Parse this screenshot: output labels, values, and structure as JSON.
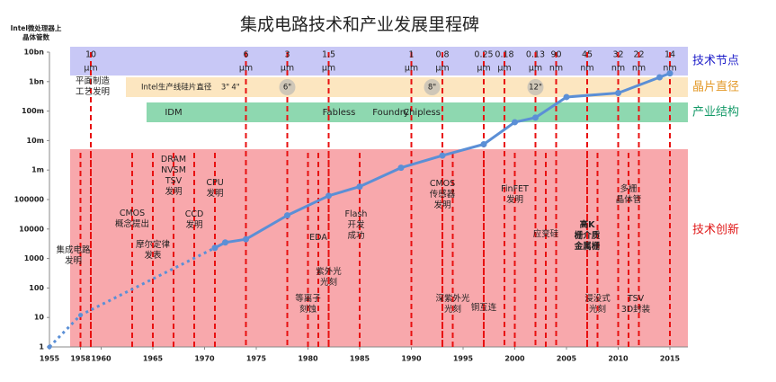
{
  "chart_data": {
    "type": "line",
    "title": "集成电路技术和产业发展里程碑",
    "y_label": [
      "Intel微处理器上",
      "晶体管数"
    ],
    "ylog": true,
    "xlim": [
      1955,
      2015
    ],
    "xticks": [
      1955,
      1958,
      1960,
      1965,
      1970,
      1975,
      1980,
      1985,
      1990,
      1995,
      2000,
      2005,
      2010,
      2015
    ],
    "ylim": [
      1,
      10000000000
    ],
    "yticks": [
      1,
      10,
      100,
      1000,
      10000,
      100000,
      {
        "value": 1000000,
        "label": "1m"
      },
      {
        "value": 10000000,
        "label": "10m"
      },
      {
        "value": 100000000,
        "label": "100m"
      },
      {
        "value": 1000000000,
        "label": "1bn"
      },
      {
        "value": 10000000000,
        "label": "10bn"
      }
    ],
    "series": [
      {
        "color": "#5b8fd6",
        "dashed": true,
        "x": [
          1955,
          1958,
          1971
        ],
        "values": [
          1,
          12,
          2300
        ]
      },
      {
        "color": "#5b8fd6",
        "dashed": false,
        "x": [
          1971,
          1972,
          1974,
          1978,
          1982,
          1985,
          1989,
          1993,
          1997,
          2000,
          2002,
          2005,
          2010,
          2014,
          2015
        ],
        "values": [
          2300,
          3500,
          4500,
          29000,
          134000,
          275000,
          1200000,
          3100000,
          7500000,
          42000000,
          60000000,
          300000000,
          410000000,
          1400000000,
          1900000000
        ]
      }
    ],
    "band_labels": {
      "node": "技术节点",
      "wafer": "晶片直径",
      "industry": "产业结构",
      "innovation": "技术创新"
    },
    "nodes": [
      {
        "year": 1959,
        "size": "10",
        "unit": "μm"
      },
      {
        "year": 1974,
        "size": "6",
        "unit": "μm"
      },
      {
        "year": 1978,
        "size": "3",
        "unit": "μm"
      },
      {
        "year": 1982,
        "size": "1.5",
        "unit": "μm"
      },
      {
        "year": 1990,
        "size": "1",
        "unit": "μm"
      },
      {
        "year": 1993,
        "size": "0.8",
        "unit": "μm"
      },
      {
        "year": 1997,
        "size": "0.25",
        "unit": "μm"
      },
      {
        "year": 1999,
        "size": "0.18",
        "unit": "μm"
      },
      {
        "year": 2002,
        "size": "0.13",
        "unit": "μm"
      },
      {
        "year": 2004,
        "size": "90",
        "unit": "nm"
      },
      {
        "year": 2007,
        "size": "45",
        "unit": "nm"
      },
      {
        "year": 2010,
        "size": "32",
        "unit": "nm"
      },
      {
        "year": 2012,
        "size": "22",
        "unit": "nm"
      },
      {
        "year": 2015,
        "size": "14",
        "unit": "nm"
      }
    ],
    "wafer_title": "Intel生产线硅片直径",
    "wafers": [
      {
        "year": 1972,
        "label": "3\"",
        "highlight": false
      },
      {
        "year": 1973,
        "label": "4\"",
        "highlight": false
      },
      {
        "year": 1978,
        "label": "6\"",
        "highlight": true
      },
      {
        "year": 1992,
        "label": "8\"",
        "highlight": true
      },
      {
        "year": 2002,
        "label": "12\"",
        "highlight": true
      }
    ],
    "industry": [
      {
        "year": 1967,
        "label": "IDM"
      },
      {
        "year": 1983,
        "label": "Fabless"
      },
      {
        "year": 1988,
        "label": "Foundry"
      },
      {
        "year": 1991,
        "label": "Chipless"
      }
    ],
    "events": [
      {
        "year": 1959,
        "lines": [
          "平面制造",
          "工艺发明"
        ]
      },
      {
        "year": 1958,
        "lines": [
          "集成电路",
          "发明"
        ]
      },
      {
        "year": 1963,
        "lines": [
          "CMOS",
          "概念提出"
        ]
      },
      {
        "year": 1965,
        "lines": [
          "摩尔定律",
          "发表"
        ]
      },
      {
        "year": 1967,
        "lines": [
          "DRAM",
          "NVSM",
          "TSV",
          "发明"
        ]
      },
      {
        "year": 1969,
        "lines": [
          "CCD",
          "发明"
        ]
      },
      {
        "year": 1971,
        "lines": [
          "CPU",
          "发明"
        ]
      },
      {
        "year": 1981,
        "lines": [
          "EDA"
        ]
      },
      {
        "year": 1982,
        "lines": [
          "紫外光",
          "光刻"
        ]
      },
      {
        "year": 1980,
        "lines": [
          "等离子",
          "刻蚀"
        ]
      },
      {
        "year": 1985,
        "lines": [
          "Flash",
          "开发",
          "成功"
        ]
      },
      {
        "year": 1993,
        "lines": [
          "CMOS",
          "传感器",
          "发明"
        ]
      },
      {
        "year": 1994,
        "lines": [
          "深紫外光",
          "光刻"
        ]
      },
      {
        "year": 1997,
        "lines": [
          "铜互连"
        ]
      },
      {
        "year": 2000,
        "lines": [
          "FinFET",
          "发明"
        ]
      },
      {
        "year": 2003,
        "lines": [
          "应变硅"
        ]
      },
      {
        "year": 2007,
        "lines": [
          "高K",
          "栅介质",
          "金属栅"
        ]
      },
      {
        "year": 2008,
        "lines": [
          "浸没式",
          "光刻"
        ]
      },
      {
        "year": 2011,
        "lines": [
          "多栅",
          "晶体管"
        ]
      },
      {
        "year": 2011,
        "lines": [
          "TSV",
          "3D封装"
        ]
      }
    ]
  }
}
